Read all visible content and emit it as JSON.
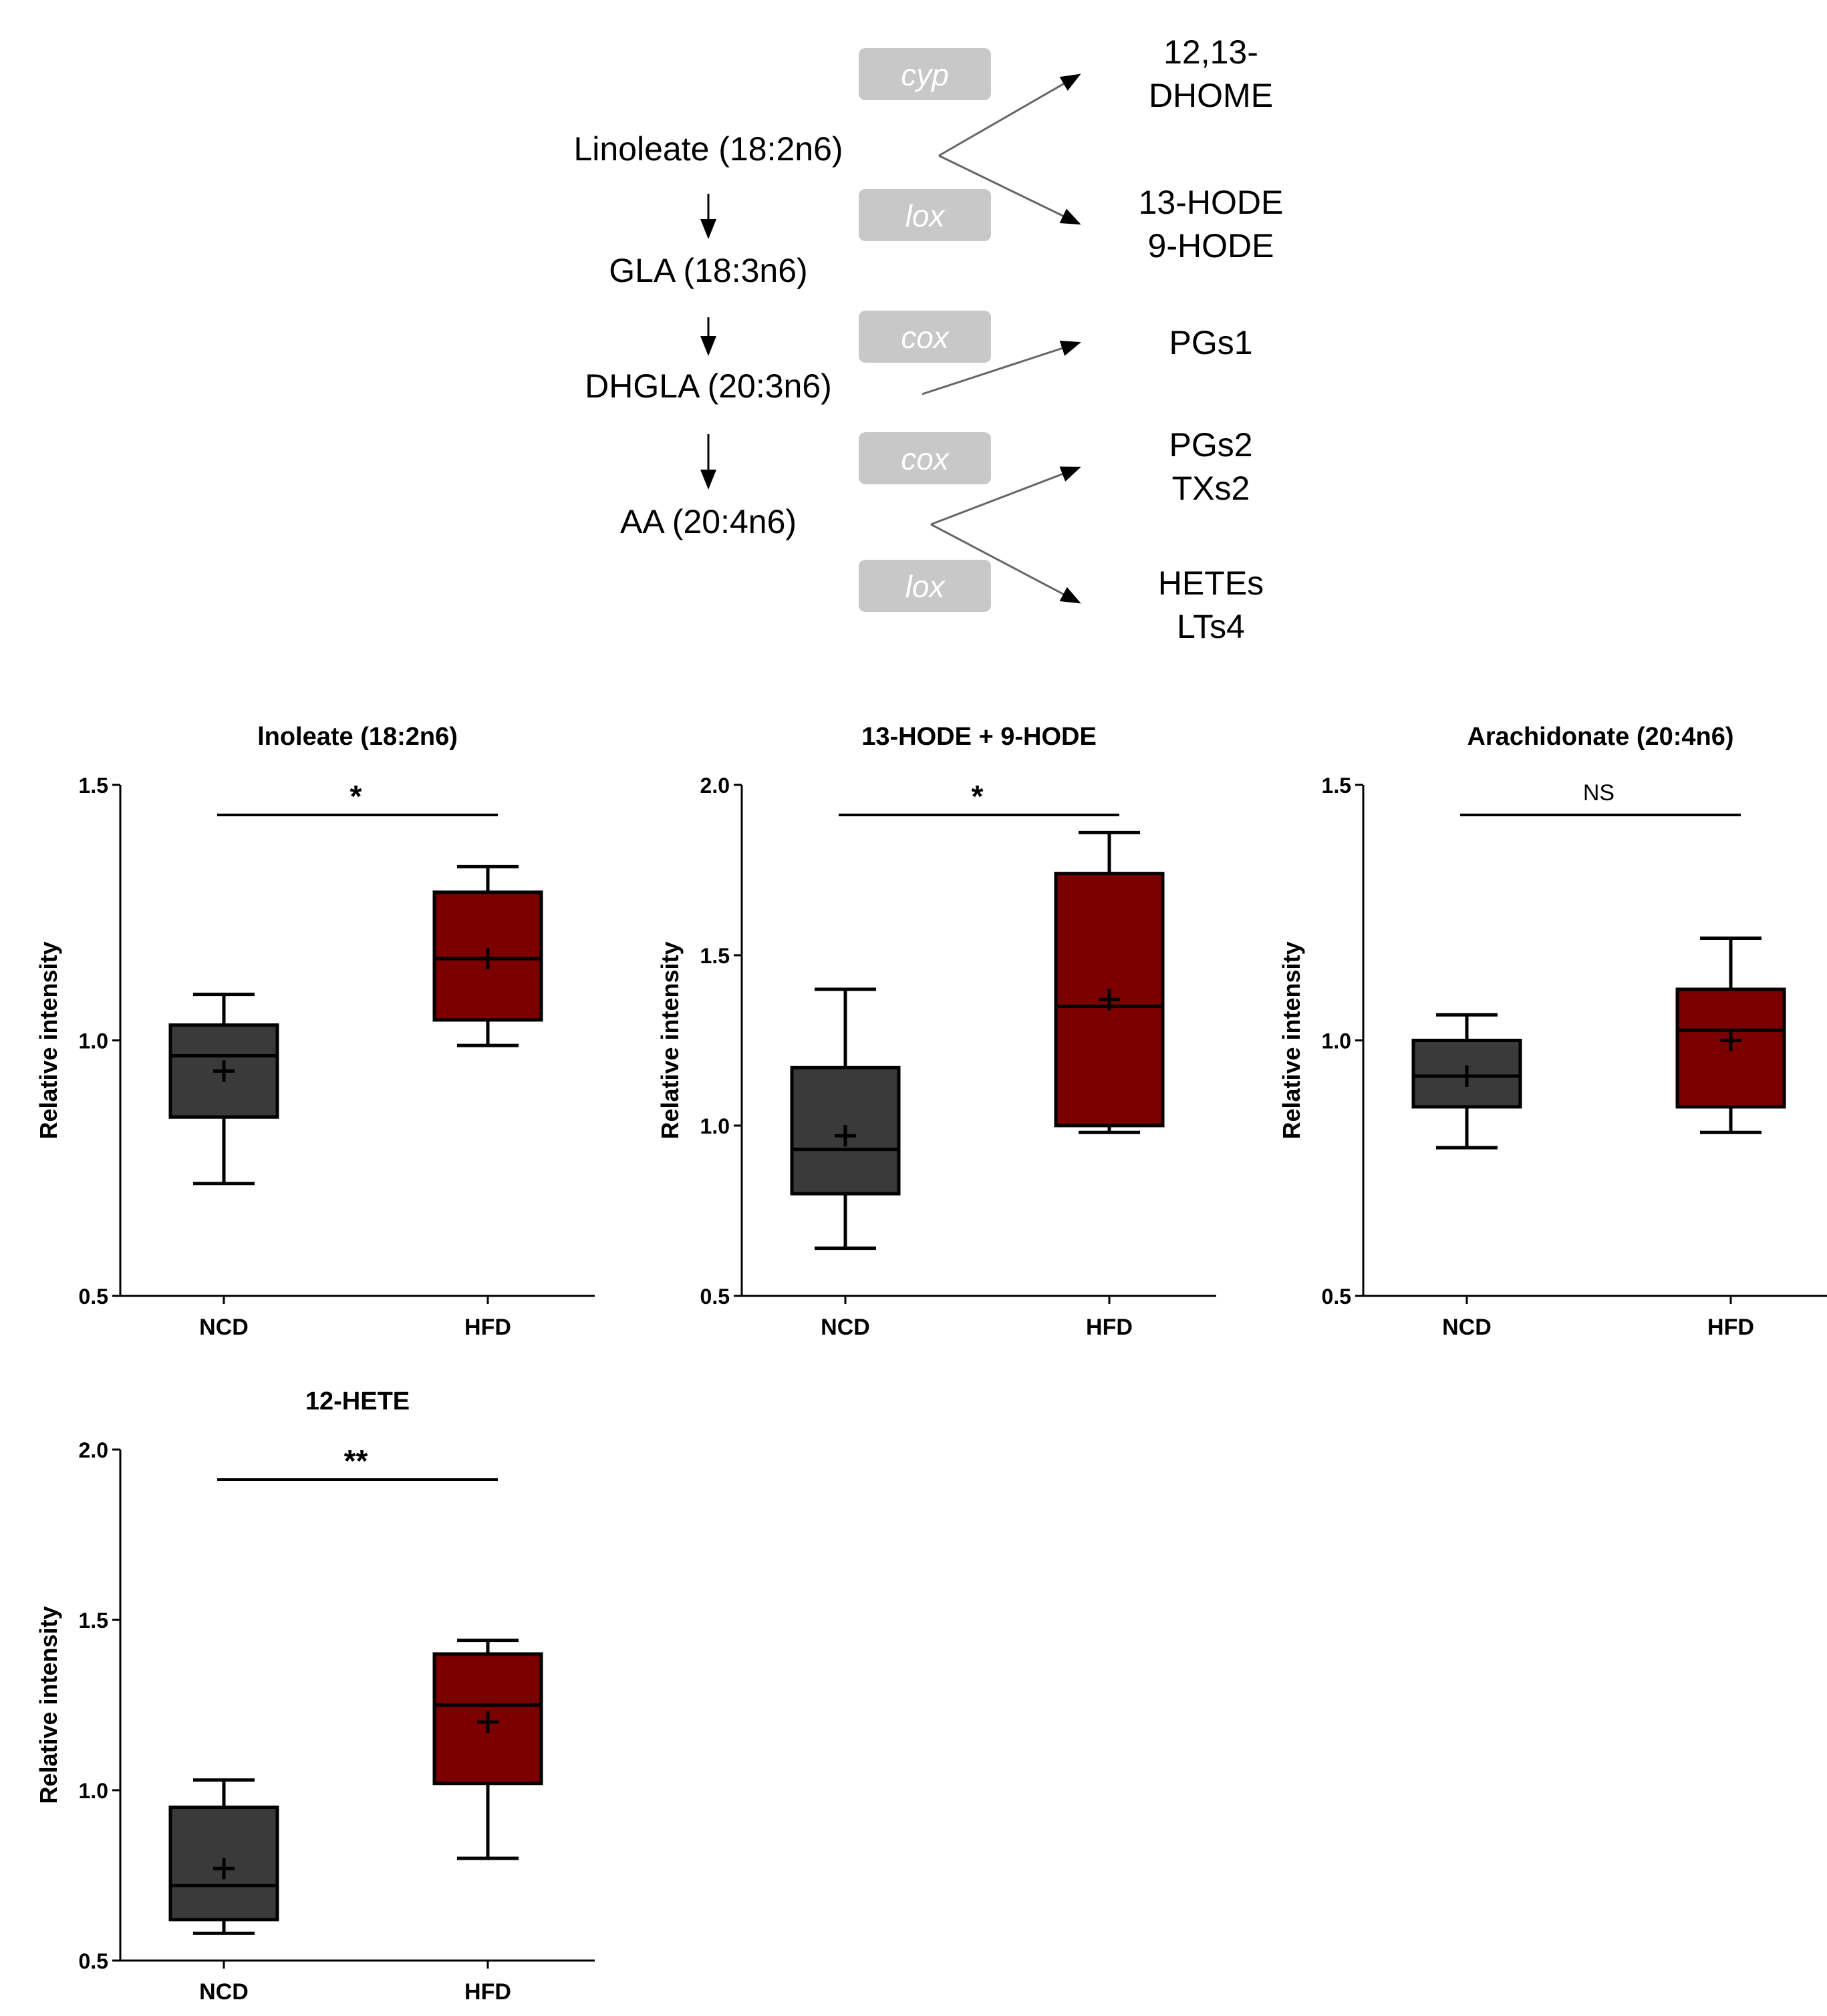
{
  "pathway": {
    "chain": [
      "Linoleate (18:2n6)",
      "GLA (18:3n6)",
      "DHGLA (20:3n6)",
      "AA (20:4n6)"
    ],
    "enzymes": [
      "cyp",
      "lox",
      "cox",
      "cox",
      "lox"
    ],
    "products": [
      [
        "12,13-",
        "DHOME"
      ],
      [
        "13-HODE",
        "9-HODE"
      ],
      [
        "PGs1"
      ],
      [
        "PGs2",
        "TXs2"
      ],
      [
        "HETEs",
        "LTs4"
      ]
    ],
    "enzyme_color": "#c8c8c8"
  },
  "colors": {
    "ncd": "#3a3a3a",
    "hfd": "#7b0000"
  },
  "chart_data": [
    {
      "type": "box",
      "title": "lnoleate (18:2n6)",
      "ylabel": "Relative intensity",
      "ylim": [
        0.5,
        1.5
      ],
      "yticks": [
        "0.5",
        "1.0",
        "1.5"
      ],
      "categories": [
        "NCD",
        "HFD"
      ],
      "series": [
        {
          "name": "NCD",
          "min": 0.72,
          "q1": 0.85,
          "median": 0.97,
          "q3": 1.03,
          "max": 1.09,
          "mean": 0.94
        },
        {
          "name": "HFD",
          "min": 0.99,
          "q1": 1.04,
          "median": 1.16,
          "q3": 1.29,
          "max": 1.34,
          "mean": 1.16
        }
      ],
      "significance": "*"
    },
    {
      "type": "box",
      "title": "13-HODE + 9-HODE",
      "ylabel": "Relative intensity",
      "ylim": [
        0.5,
        2.0
      ],
      "yticks": [
        "0.5",
        "1.0",
        "1.5",
        "2.0"
      ],
      "categories": [
        "NCD",
        "HFD"
      ],
      "series": [
        {
          "name": "NCD",
          "min": 0.64,
          "q1": 0.8,
          "median": 0.93,
          "q3": 1.17,
          "max": 1.4,
          "mean": 0.97
        },
        {
          "name": "HFD",
          "min": 0.98,
          "q1": 1.0,
          "median": 1.35,
          "q3": 1.74,
          "max": 1.86,
          "mean": 1.37
        }
      ],
      "significance": "*"
    },
    {
      "type": "box",
      "title": "Arachidonate (20:4n6)",
      "ylabel": "Relative intensity",
      "ylim": [
        0.5,
        1.5
      ],
      "yticks": [
        "0.5",
        "1.0",
        "1.5"
      ],
      "categories": [
        "NCD",
        "HFD"
      ],
      "series": [
        {
          "name": "NCD",
          "min": 0.79,
          "q1": 0.87,
          "median": 0.93,
          "q3": 1.0,
          "max": 1.05,
          "mean": 0.93
        },
        {
          "name": "HFD",
          "min": 0.82,
          "q1": 0.87,
          "median": 1.02,
          "q3": 1.1,
          "max": 1.2,
          "mean": 1.0
        }
      ],
      "significance": "NS"
    },
    {
      "type": "box",
      "title": "12-HETE",
      "ylabel": "Relative intensity",
      "ylim": [
        0.5,
        2.0
      ],
      "yticks": [
        "0.5",
        "1.0",
        "1.5",
        "2.0"
      ],
      "categories": [
        "NCD",
        "HFD"
      ],
      "series": [
        {
          "name": "NCD",
          "min": 0.58,
          "q1": 0.62,
          "median": 0.72,
          "q3": 0.95,
          "max": 1.03,
          "mean": 0.77
        },
        {
          "name": "HFD",
          "min": 0.8,
          "q1": 1.02,
          "median": 1.25,
          "q3": 1.4,
          "max": 1.44,
          "mean": 1.2
        }
      ],
      "significance": "**"
    }
  ]
}
